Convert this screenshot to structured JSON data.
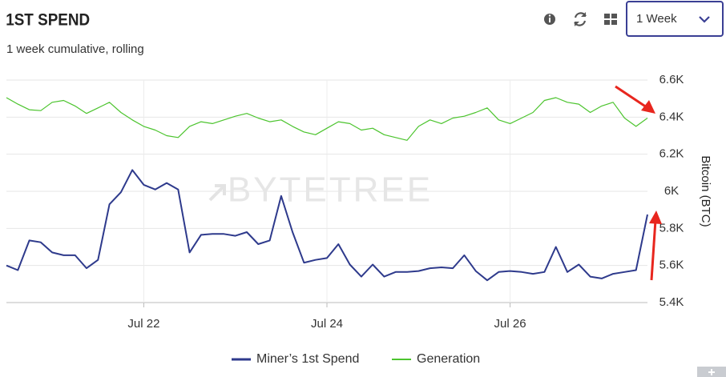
{
  "header": {
    "title": "1ST SPEND",
    "subtitle": "1 week cumulative, rolling",
    "range_select": "1 Week"
  },
  "chart_data": {
    "type": "line",
    "watermark": "BYTETREE",
    "y_label": "Bitcoin (BTC)",
    "categories": [
      null,
      null,
      null,
      null,
      null,
      null,
      null,
      null,
      null,
      null,
      null,
      null,
      "Jul 22",
      null,
      null,
      null,
      null,
      null,
      null,
      null,
      null,
      null,
      null,
      null,
      null,
      null,
      null,
      null,
      "Jul 24",
      null,
      null,
      null,
      null,
      null,
      null,
      null,
      null,
      null,
      null,
      null,
      null,
      null,
      null,
      null,
      "Jul 26",
      null,
      null,
      null,
      null,
      null,
      null,
      null,
      null,
      null,
      null,
      null,
      null
    ],
    "series": [
      {
        "name": "Miner’s 1st Spend",
        "color": "#2e3a8c",
        "values": [
          5600,
          5575,
          5735,
          5725,
          5670,
          5655,
          5655,
          5585,
          5630,
          5930,
          5995,
          6115,
          6035,
          6010,
          6045,
          6010,
          5670,
          5765,
          5770,
          5770,
          5760,
          5780,
          5715,
          5735,
          5975,
          5780,
          5615,
          5630,
          5640,
          5715,
          5605,
          5540,
          5605,
          5540,
          5565,
          5565,
          5570,
          5585,
          5590,
          5585,
          5655,
          5570,
          5520,
          5565,
          5570,
          5565,
          5555,
          5565,
          5700,
          5565,
          5605,
          5540,
          5530,
          5555,
          5565,
          5575,
          5875
        ]
      },
      {
        "name": "Generation",
        "color": "#4cc42e",
        "values": [
          6505,
          6470,
          6440,
          6435,
          6480,
          6490,
          6460,
          6420,
          6450,
          6480,
          6425,
          6385,
          6350,
          6330,
          6300,
          6290,
          6350,
          6375,
          6365,
          6385,
          6405,
          6420,
          6395,
          6375,
          6385,
          6350,
          6320,
          6305,
          6340,
          6375,
          6365,
          6330,
          6340,
          6305,
          6290,
          6275,
          6350,
          6385,
          6365,
          6395,
          6405,
          6425,
          6450,
          6385,
          6365,
          6395,
          6425,
          6490,
          6505,
          6480,
          6470,
          6425,
          6460,
          6480,
          6395,
          6350,
          6395
        ]
      }
    ],
    "ylim": [
      5400,
      6600
    ],
    "yticks": [
      {
        "value": 5400,
        "label": "5.4K"
      },
      {
        "value": 5600,
        "label": "5.6K"
      },
      {
        "value": 5800,
        "label": "5.8K"
      },
      {
        "value": 6000,
        "label": "6K"
      },
      {
        "value": 6200,
        "label": "6.2K"
      },
      {
        "value": 6400,
        "label": "6.4K"
      },
      {
        "value": 6600,
        "label": "6.6K"
      }
    ],
    "grid": true,
    "legend": "bottom"
  }
}
